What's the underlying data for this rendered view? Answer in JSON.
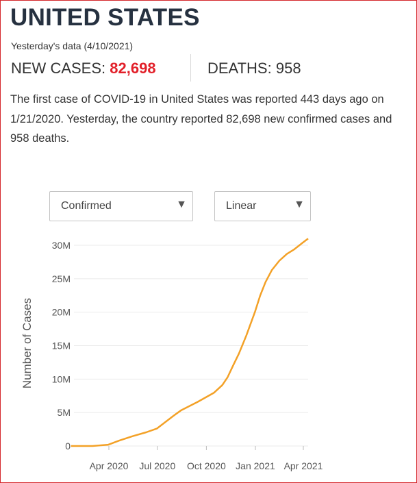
{
  "header": {
    "title": "UNITED STATES",
    "data_date": "Yesterday's data (4/10/2021)",
    "new_cases_label": "NEW CASES:",
    "new_cases_value": "82,698",
    "deaths_label": "DEATHS:",
    "deaths_value": "958"
  },
  "summary": {
    "p1": "The first case of ",
    "disease": "COVID-19",
    "p2": " in ",
    "country": "United States",
    "p3": " was reported 443 days ago on 1/21/2020. Yesterday, the country reported 82,698 new confirmed cases and 958 deaths."
  },
  "controls": {
    "metric_selected": "Confirmed",
    "scale_selected": "Linear"
  },
  "colors": {
    "line": "#f3a127",
    "accent_red": "#e2202a",
    "title": "#263140"
  },
  "chart_data": {
    "type": "line",
    "ylabel": "Number of Cases",
    "xlabel": "",
    "ylim": [
      0,
      31000000
    ],
    "xlim": [
      "2020-01-21",
      "2021-04-10"
    ],
    "y_ticks": [
      {
        "value": 0,
        "label": "0"
      },
      {
        "value": 5000000,
        "label": "5M"
      },
      {
        "value": 10000000,
        "label": "10M"
      },
      {
        "value": 15000000,
        "label": "15M"
      },
      {
        "value": 20000000,
        "label": "20M"
      },
      {
        "value": 25000000,
        "label": "25M"
      },
      {
        "value": 30000000,
        "label": "30M"
      }
    ],
    "x_ticks": [
      {
        "date": "2020-04-01",
        "label": "Apr 2020"
      },
      {
        "date": "2020-07-01",
        "label": "Jul 2020"
      },
      {
        "date": "2020-10-01",
        "label": "Oct 2020"
      },
      {
        "date": "2021-01-01",
        "label": "Jan 2021"
      },
      {
        "date": "2021-04-01",
        "label": "Apr 2021"
      }
    ],
    "grid": true,
    "series": [
      {
        "color": "#f3a127",
        "points": [
          {
            "x": "2020-01-21",
            "y": 0
          },
          {
            "x": "2020-03-01",
            "y": 100
          },
          {
            "x": "2020-03-31",
            "y": 190000
          },
          {
            "x": "2020-04-20",
            "y": 800000
          },
          {
            "x": "2020-05-15",
            "y": 1450000
          },
          {
            "x": "2020-06-10",
            "y": 2050000
          },
          {
            "x": "2020-06-30",
            "y": 2600000
          },
          {
            "x": "2020-07-31",
            "y": 4500000
          },
          {
            "x": "2020-08-15",
            "y": 5350000
          },
          {
            "x": "2020-09-15",
            "y": 6600000
          },
          {
            "x": "2020-10-15",
            "y": 7950000
          },
          {
            "x": "2020-10-31",
            "y": 9100000
          },
          {
            "x": "2020-11-10",
            "y": 10300000
          },
          {
            "x": "2020-11-20",
            "y": 12000000
          },
          {
            "x": "2020-12-01",
            "y": 13800000
          },
          {
            "x": "2020-12-15",
            "y": 16500000
          },
          {
            "x": "2020-12-31",
            "y": 20000000
          },
          {
            "x": "2021-01-10",
            "y": 22500000
          },
          {
            "x": "2021-01-20",
            "y": 24500000
          },
          {
            "x": "2021-02-01",
            "y": 26300000
          },
          {
            "x": "2021-02-15",
            "y": 27700000
          },
          {
            "x": "2021-03-01",
            "y": 28700000
          },
          {
            "x": "2021-03-15",
            "y": 29400000
          },
          {
            "x": "2021-03-31",
            "y": 30400000
          },
          {
            "x": "2021-04-10",
            "y": 31000000
          }
        ]
      }
    ]
  }
}
